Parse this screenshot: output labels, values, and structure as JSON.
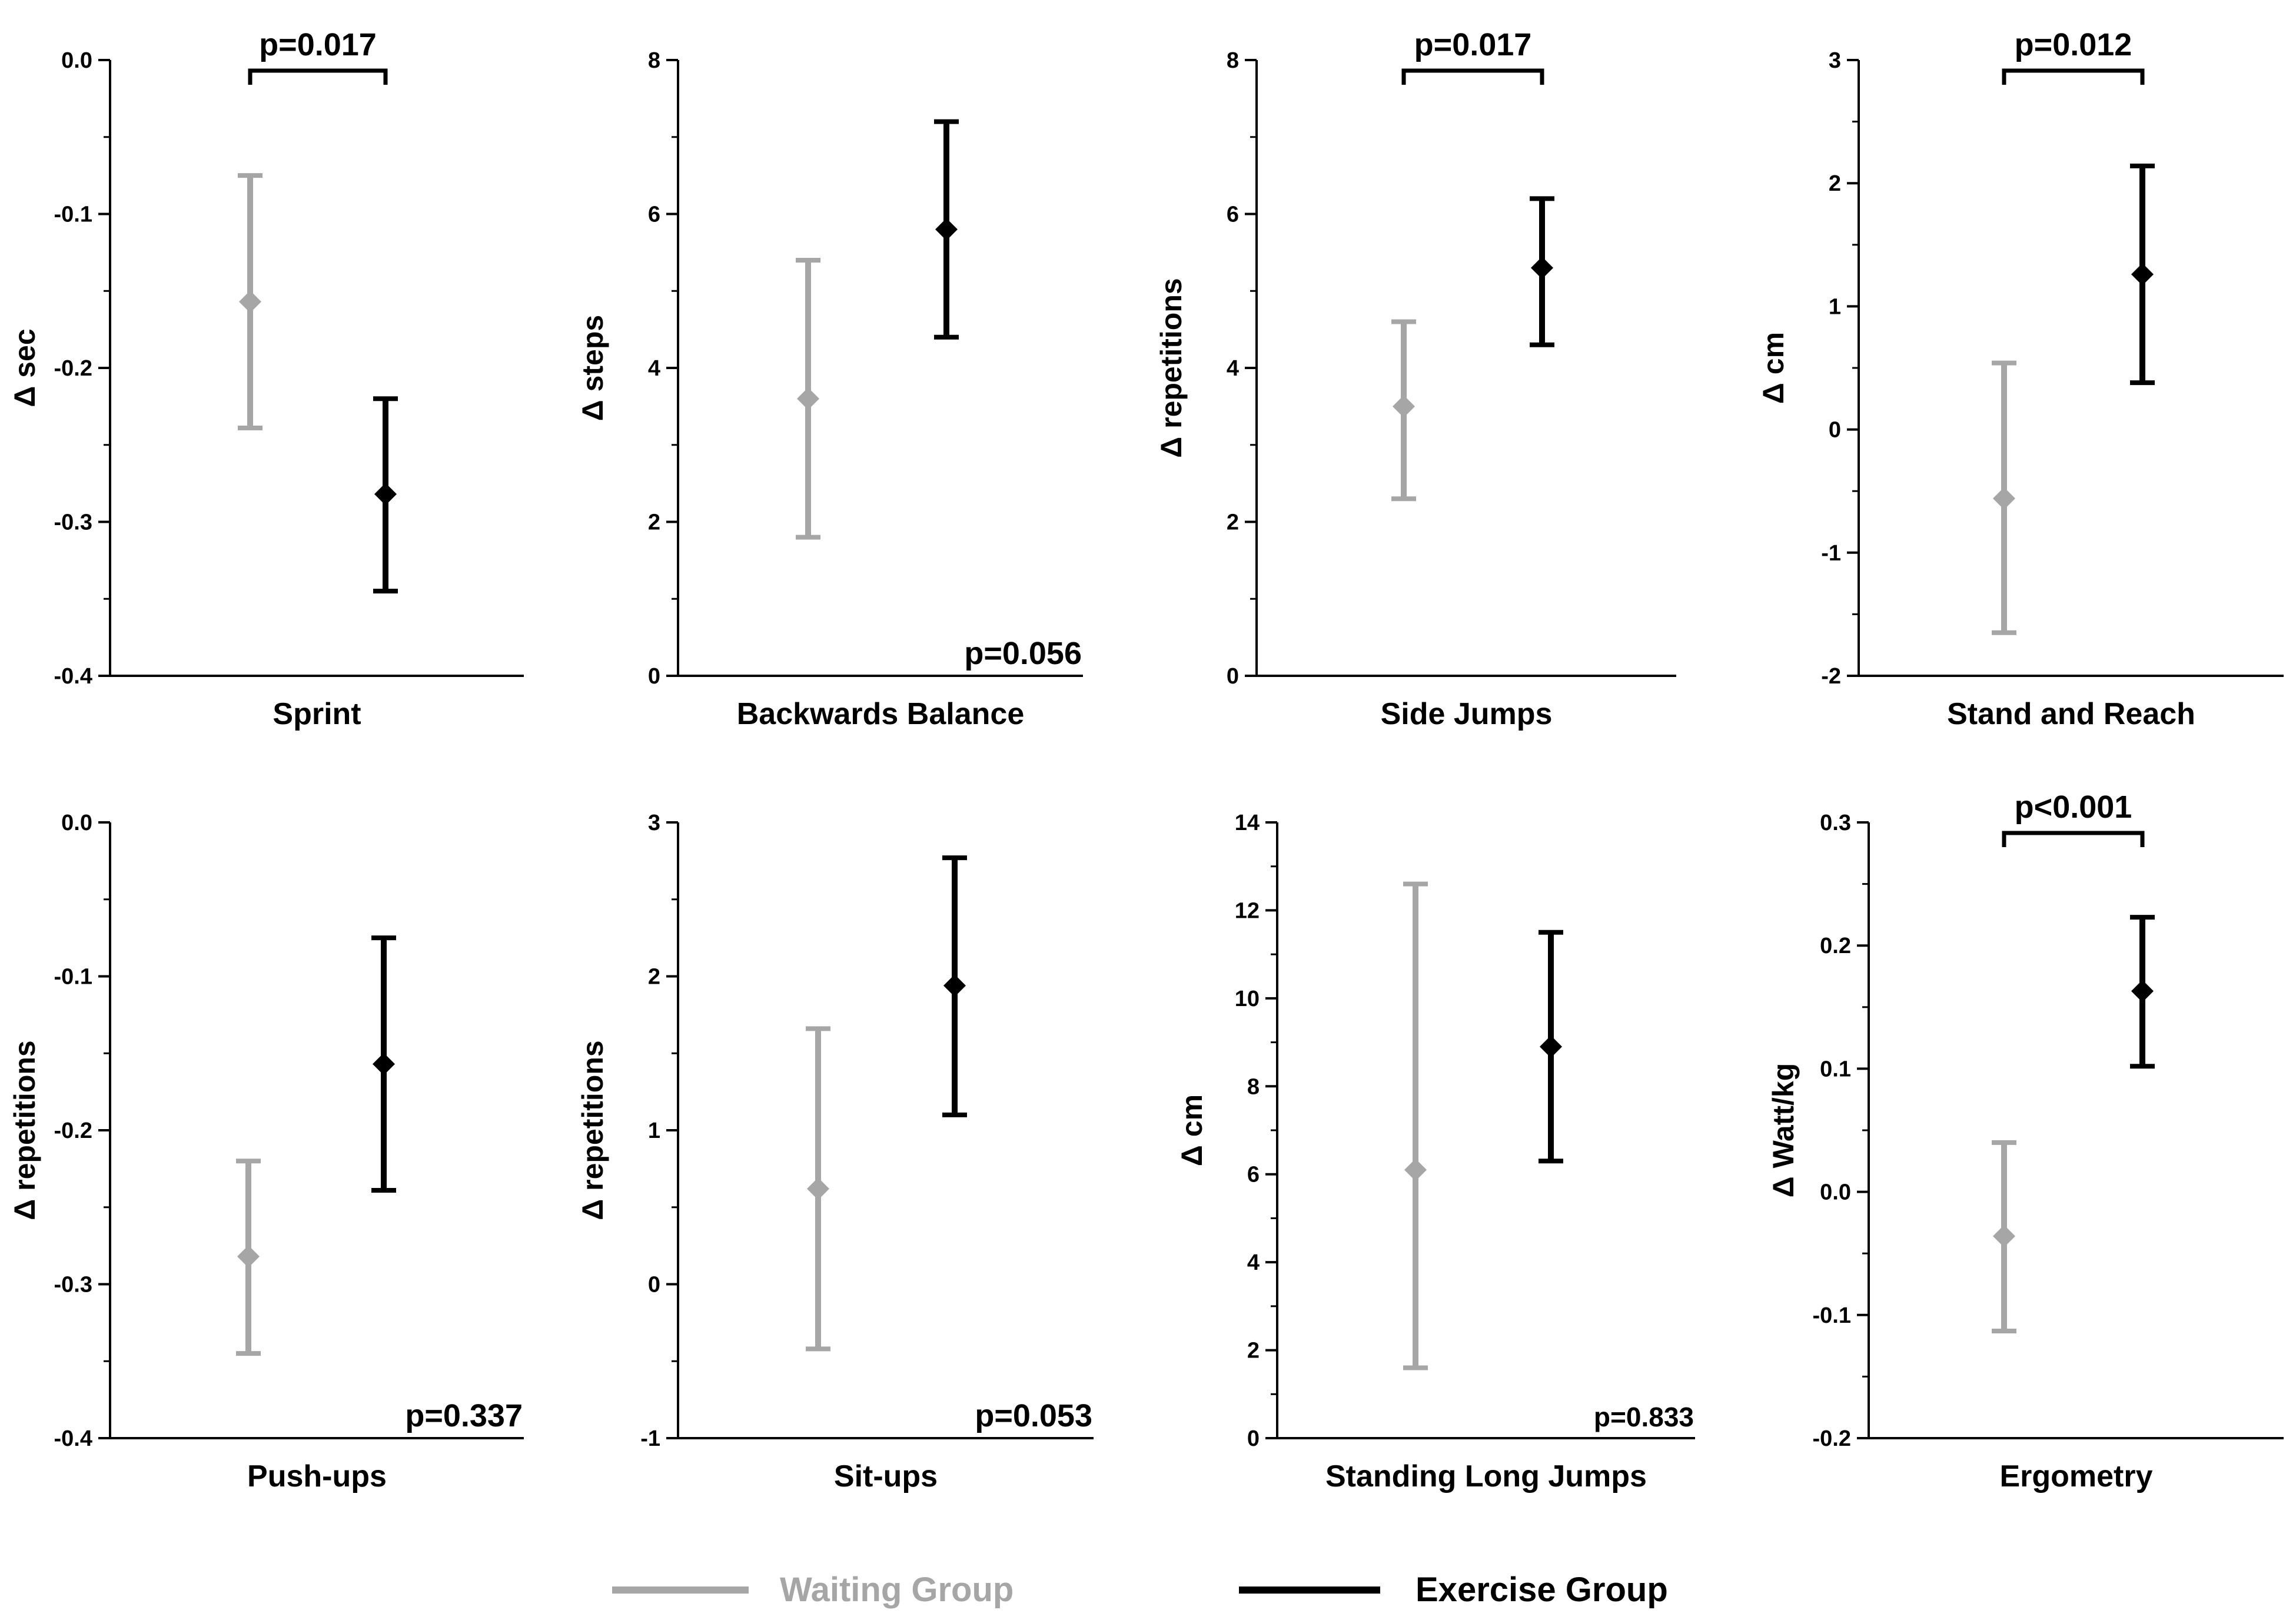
{
  "legend": {
    "items": [
      {
        "name": "Waiting Group",
        "color": "#a6a6a6"
      },
      {
        "name": "Exercise Group",
        "color": "#000000"
      }
    ]
  },
  "chart_data": [
    {
      "type": "scatter",
      "title": "Sprint",
      "ylabel": "Δ sec",
      "ylim": [
        -0.4,
        0.0
      ],
      "yticks": [
        "0.0",
        "-0.1",
        "-0.2",
        "-0.3",
        "-0.4"
      ],
      "series": [
        {
          "name": "Waiting Group",
          "mean": -0.157,
          "lower": -0.239,
          "upper": -0.075,
          "color": "#a6a6a6"
        },
        {
          "name": "Exercise Group",
          "mean": -0.282,
          "lower": -0.345,
          "upper": -0.22,
          "color": "#000000"
        }
      ],
      "p_value": "p=0.017",
      "p_style": "bracket"
    },
    {
      "type": "scatter",
      "title": "Backwards Balance",
      "ylabel": "Δ steps",
      "ylim": [
        0,
        8
      ],
      "yticks": [
        "8",
        "6",
        "4",
        "2",
        "0"
      ],
      "series": [
        {
          "name": "Waiting Group",
          "mean": 3.6,
          "lower": 1.8,
          "upper": 5.4,
          "color": "#a6a6a6"
        },
        {
          "name": "Exercise Group",
          "mean": 5.8,
          "lower": 4.4,
          "upper": 7.2,
          "color": "#000000"
        }
      ],
      "p_value": "p=0.056",
      "p_style": "corner"
    },
    {
      "type": "scatter",
      "title": "Side Jumps",
      "ylabel": "Δ repetitions",
      "ylim": [
        0,
        8
      ],
      "yticks": [
        "8",
        "6",
        "4",
        "2",
        "0"
      ],
      "series": [
        {
          "name": "Waiting Group",
          "mean": 3.5,
          "lower": 2.3,
          "upper": 4.6,
          "color": "#a6a6a6"
        },
        {
          "name": "Exercise Group",
          "mean": 5.3,
          "lower": 4.3,
          "upper": 6.2,
          "color": "#000000"
        }
      ],
      "p_value": "p=0.017",
      "p_style": "bracket"
    },
    {
      "type": "scatter",
      "title": "Stand and Reach",
      "ylabel": "Δ cm",
      "ylim": [
        -2,
        3
      ],
      "yticks": [
        "3",
        "2",
        "1",
        "0",
        "-1",
        "-2"
      ],
      "series": [
        {
          "name": "Waiting Group",
          "mean": -0.56,
          "lower": -1.65,
          "upper": 0.54,
          "color": "#a6a6a6"
        },
        {
          "name": "Exercise Group",
          "mean": 1.26,
          "lower": 0.38,
          "upper": 2.14,
          "color": "#000000"
        }
      ],
      "p_value": "p=0.012",
      "p_style": "bracket"
    },
    {
      "type": "scatter",
      "title": "Push-ups",
      "ylabel": "Δ repetitions",
      "ylim": [
        -0.4,
        0.0
      ],
      "yticks": [
        "0.0",
        "-0.1",
        "-0.2",
        "-0.3",
        "-0.4"
      ],
      "series": [
        {
          "name": "Waiting Group",
          "mean": -0.282,
          "lower": -0.345,
          "upper": -0.22,
          "color": "#a6a6a6"
        },
        {
          "name": "Exercise Group",
          "mean": -0.157,
          "lower": -0.239,
          "upper": -0.075,
          "color": "#000000"
        }
      ],
      "p_value": "p=0.337",
      "p_style": "corner"
    },
    {
      "type": "scatter",
      "title": "Sit-ups",
      "ylabel": "Δ repetitions",
      "ylim": [
        -1,
        3
      ],
      "yticks": [
        "3",
        "2",
        "1",
        "0",
        "-1"
      ],
      "series": [
        {
          "name": "Waiting Group",
          "mean": 0.62,
          "lower": -0.42,
          "upper": 1.66,
          "color": "#a6a6a6"
        },
        {
          "name": "Exercise Group",
          "mean": 1.94,
          "lower": 1.1,
          "upper": 2.77,
          "color": "#000000"
        }
      ],
      "p_value": "p=0.053",
      "p_style": "corner"
    },
    {
      "type": "scatter",
      "title": "Standing Long Jumps",
      "ylabel": "Δ cm",
      "ylim": [
        0,
        14
      ],
      "yticks": [
        "14",
        "12",
        "10",
        "8",
        "6",
        "4",
        "2",
        "0"
      ],
      "series": [
        {
          "name": "Waiting Group",
          "mean": 6.1,
          "lower": 1.6,
          "upper": 12.6,
          "color": "#a6a6a6"
        },
        {
          "name": "Exercise Group",
          "mean": 8.9,
          "lower": 6.3,
          "upper": 11.5,
          "color": "#000000"
        }
      ],
      "p_value": "p=0.833",
      "p_style": "corner"
    },
    {
      "type": "scatter",
      "title": "Ergometry",
      "ylabel": "Δ Watt/kg",
      "ylim": [
        -0.2,
        0.3
      ],
      "yticks": [
        "0.3",
        "0.2",
        "0.1",
        "0.0",
        "-0.1",
        "-0.2"
      ],
      "series": [
        {
          "name": "Waiting Group",
          "mean": -0.036,
          "lower": -0.113,
          "upper": 0.04,
          "color": "#a6a6a6"
        },
        {
          "name": "Exercise Group",
          "mean": 0.163,
          "lower": 0.102,
          "upper": 0.223,
          "color": "#000000"
        }
      ],
      "p_value": "p<0.001",
      "p_style": "bracket"
    }
  ]
}
